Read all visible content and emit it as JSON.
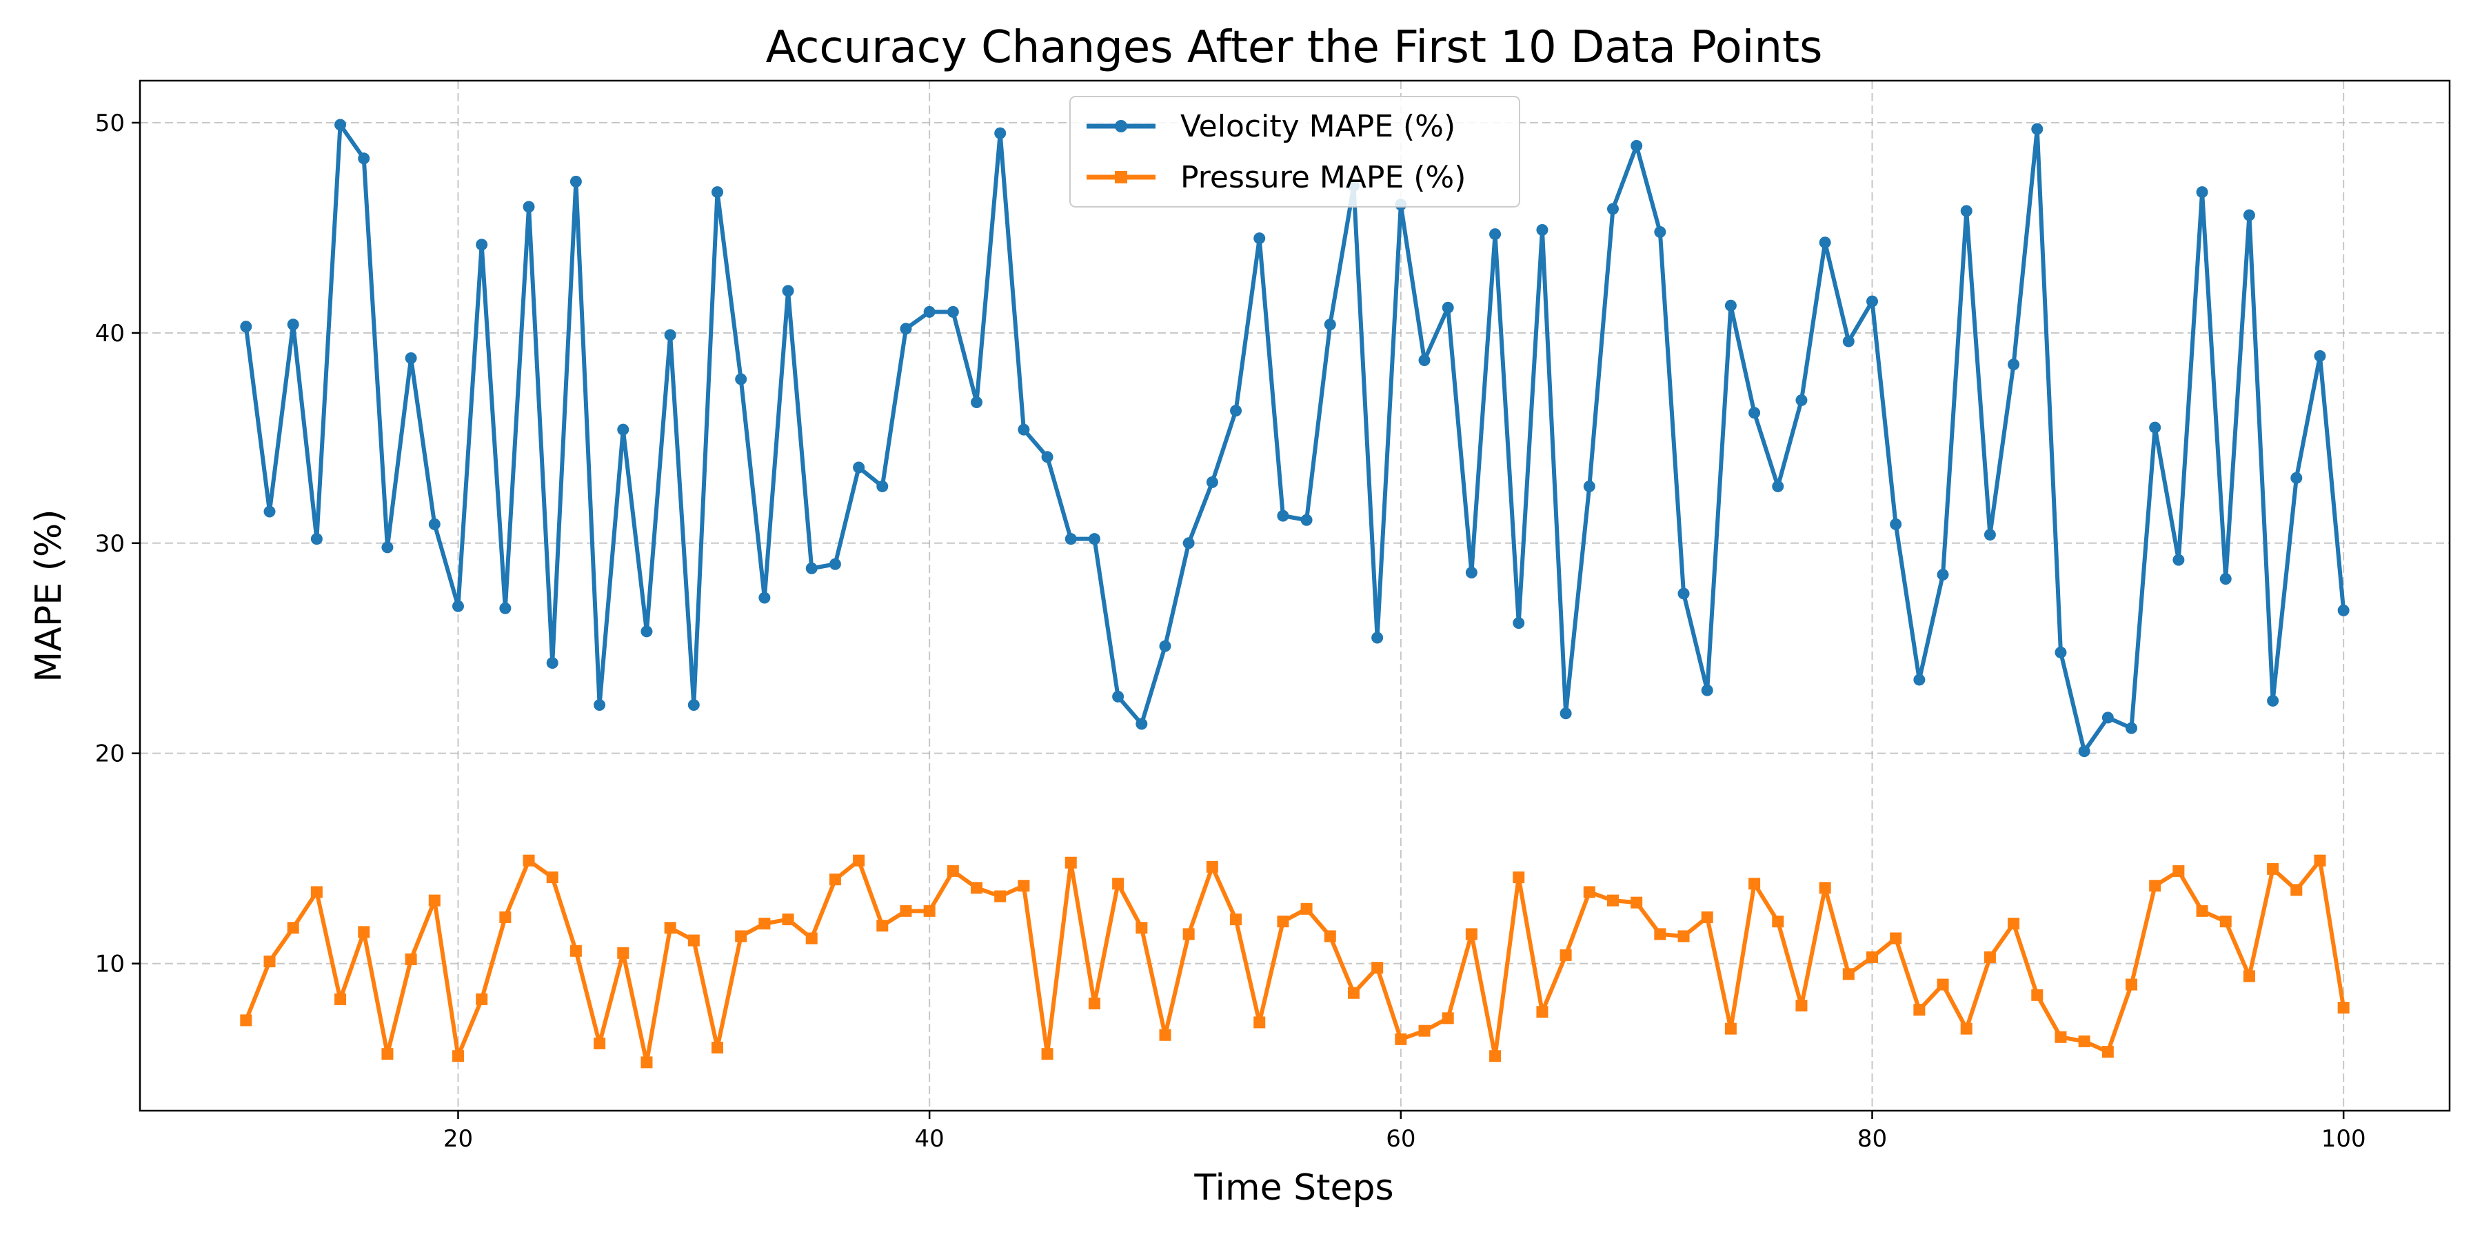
{
  "chart_data": {
    "type": "line",
    "title": "Accuracy Changes After the First 10 Data Points",
    "xlabel": "Time Steps",
    "ylabel": "MAPE (%)",
    "xlim": [
      6.5,
      104.5
    ],
    "ylim": [
      3,
      52
    ],
    "xticks": [
      20,
      40,
      60,
      80,
      100
    ],
    "yticks": [
      10,
      20,
      30,
      40,
      50
    ],
    "grid": true,
    "legend_position": "top-center",
    "x": [
      11,
      12,
      13,
      14,
      15,
      16,
      17,
      18,
      19,
      20,
      21,
      22,
      23,
      24,
      25,
      26,
      27,
      28,
      29,
      30,
      31,
      32,
      33,
      34,
      35,
      36,
      37,
      38,
      39,
      40,
      41,
      42,
      43,
      44,
      45,
      46,
      47,
      48,
      49,
      50,
      51,
      52,
      53,
      54,
      55,
      56,
      57,
      58,
      59,
      60,
      61,
      62,
      63,
      64,
      65,
      66,
      67,
      68,
      69,
      70,
      71,
      72,
      73,
      74,
      75,
      76,
      77,
      78,
      79,
      80,
      81,
      82,
      83,
      84,
      85,
      86,
      87,
      88,
      89,
      90,
      91,
      92,
      93,
      94,
      95,
      96,
      97,
      98,
      99,
      100
    ],
    "series": [
      {
        "name": "Velocity MAPE (%)",
        "color": "#1f77b4",
        "marker": "circle",
        "values": [
          40.3,
          31.5,
          40.4,
          30.2,
          49.9,
          48.3,
          29.8,
          38.8,
          30.9,
          27.0,
          44.2,
          26.9,
          46.0,
          24.3,
          47.2,
          22.3,
          35.4,
          25.8,
          39.9,
          22.3,
          46.7,
          37.8,
          27.4,
          42.0,
          28.8,
          29.0,
          33.6,
          32.7,
          40.2,
          41.0,
          41.0,
          36.7,
          49.5,
          35.4,
          34.1,
          30.2,
          30.2,
          22.7,
          21.4,
          25.1,
          30.0,
          32.9,
          36.3,
          44.5,
          31.3,
          31.1,
          40.4,
          47.0,
          25.5,
          46.1,
          38.7,
          41.2,
          28.6,
          44.7,
          26.2,
          44.9,
          21.9,
          32.7,
          45.9,
          48.9,
          44.8,
          27.6,
          23.0,
          41.3,
          36.2,
          32.7,
          36.8,
          44.3,
          39.6,
          41.5,
          30.9,
          23.5,
          28.5,
          45.8,
          30.4,
          38.5,
          49.7,
          24.8,
          20.1,
          21.7,
          21.2,
          35.5,
          29.2,
          46.7,
          28.3,
          45.6,
          22.5,
          33.1,
          38.9,
          26.8
        ]
      },
      {
        "name": "Pressure MAPE (%)",
        "color": "#ff7f0e",
        "marker": "square",
        "values": [
          7.3,
          10.1,
          11.7,
          13.4,
          8.3,
          11.5,
          5.7,
          10.2,
          13.0,
          5.6,
          8.3,
          12.2,
          14.9,
          14.1,
          10.6,
          6.2,
          10.5,
          5.3,
          11.7,
          11.1,
          6.0,
          11.3,
          11.9,
          12.1,
          11.2,
          14.0,
          14.9,
          11.8,
          12.5,
          12.5,
          14.4,
          13.6,
          13.2,
          13.7,
          5.7,
          14.8,
          8.1,
          13.8,
          11.7,
          6.6,
          11.4,
          14.6,
          12.1,
          7.2,
          12.0,
          12.6,
          11.3,
          8.6,
          9.8,
          6.4,
          6.8,
          7.4,
          11.4,
          5.6,
          14.1,
          7.7,
          10.4,
          13.4,
          13.0,
          12.9,
          11.4,
          11.3,
          12.2,
          6.9,
          13.8,
          12.0,
          8.0,
          13.6,
          9.5,
          10.3,
          11.2,
          7.8,
          9.0,
          6.9,
          10.3,
          11.9,
          8.5,
          6.5,
          6.3,
          5.8,
          9.0,
          13.7,
          14.4,
          12.5,
          12.0,
          9.4,
          14.5,
          13.5,
          14.9,
          7.9
        ]
      }
    ]
  }
}
